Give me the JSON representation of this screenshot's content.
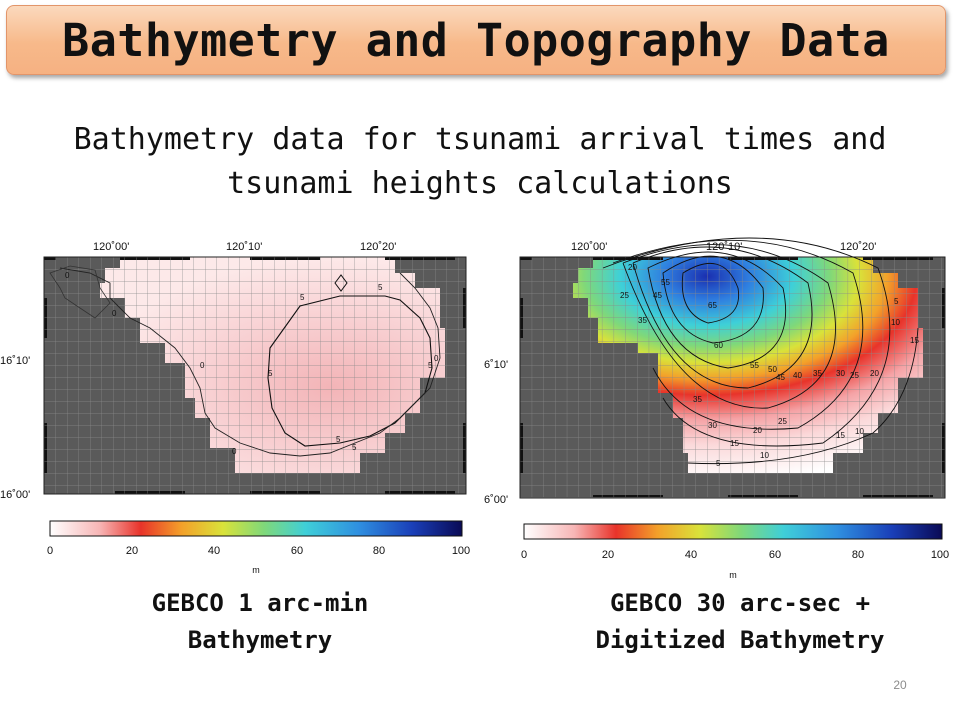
{
  "title": "Bathymetry and Topography Data",
  "subtitle_line1": "Bathymetry data for tsunami arrival times and",
  "subtitle_line2": "tsunami heights calculations",
  "left_map": {
    "lon_labels": [
      "120˚00'",
      "120˚10'",
      "120˚20'"
    ],
    "lat_labels": [
      "16˚10'",
      "16˚00'"
    ],
    "contour_labels": [
      "0",
      "5",
      "0",
      "5",
      "5",
      "0",
      "5",
      "0",
      "5",
      "0",
      "5"
    ],
    "colorbar_ticks": [
      "0",
      "20",
      "40",
      "60",
      "80",
      "100"
    ],
    "colorbar_unit": "m",
    "caption_line1": "GEBCO 1 arc-min",
    "caption_line2": "Bathymetry"
  },
  "right_map": {
    "lon_labels": [
      "120˚00'",
      "120˚10'",
      "120˚20'"
    ],
    "lat_labels": [
      "6˚10'",
      "6˚00'"
    ],
    "contour_labels": [
      "20",
      "25",
      "35",
      "45",
      "55",
      "65",
      "60",
      "55",
      "50",
      "45",
      "40",
      "35",
      "30",
      "25",
      "20",
      "15",
      "10",
      "5",
      "15",
      "10",
      "5",
      "10",
      "15",
      "20",
      "25",
      "30",
      "35"
    ],
    "colorbar_ticks": [
      "0",
      "20",
      "40",
      "60",
      "80",
      "100"
    ],
    "colorbar_unit": "m",
    "caption_line1": "GEBCO 30 arc-sec +",
    "caption_line2": "Digitized Bathymetry"
  },
  "page_number": "20",
  "colors": {
    "title_fill": "#f7b98a",
    "land": "#5a5a5a",
    "shallow_sea": "#fde4e4"
  }
}
